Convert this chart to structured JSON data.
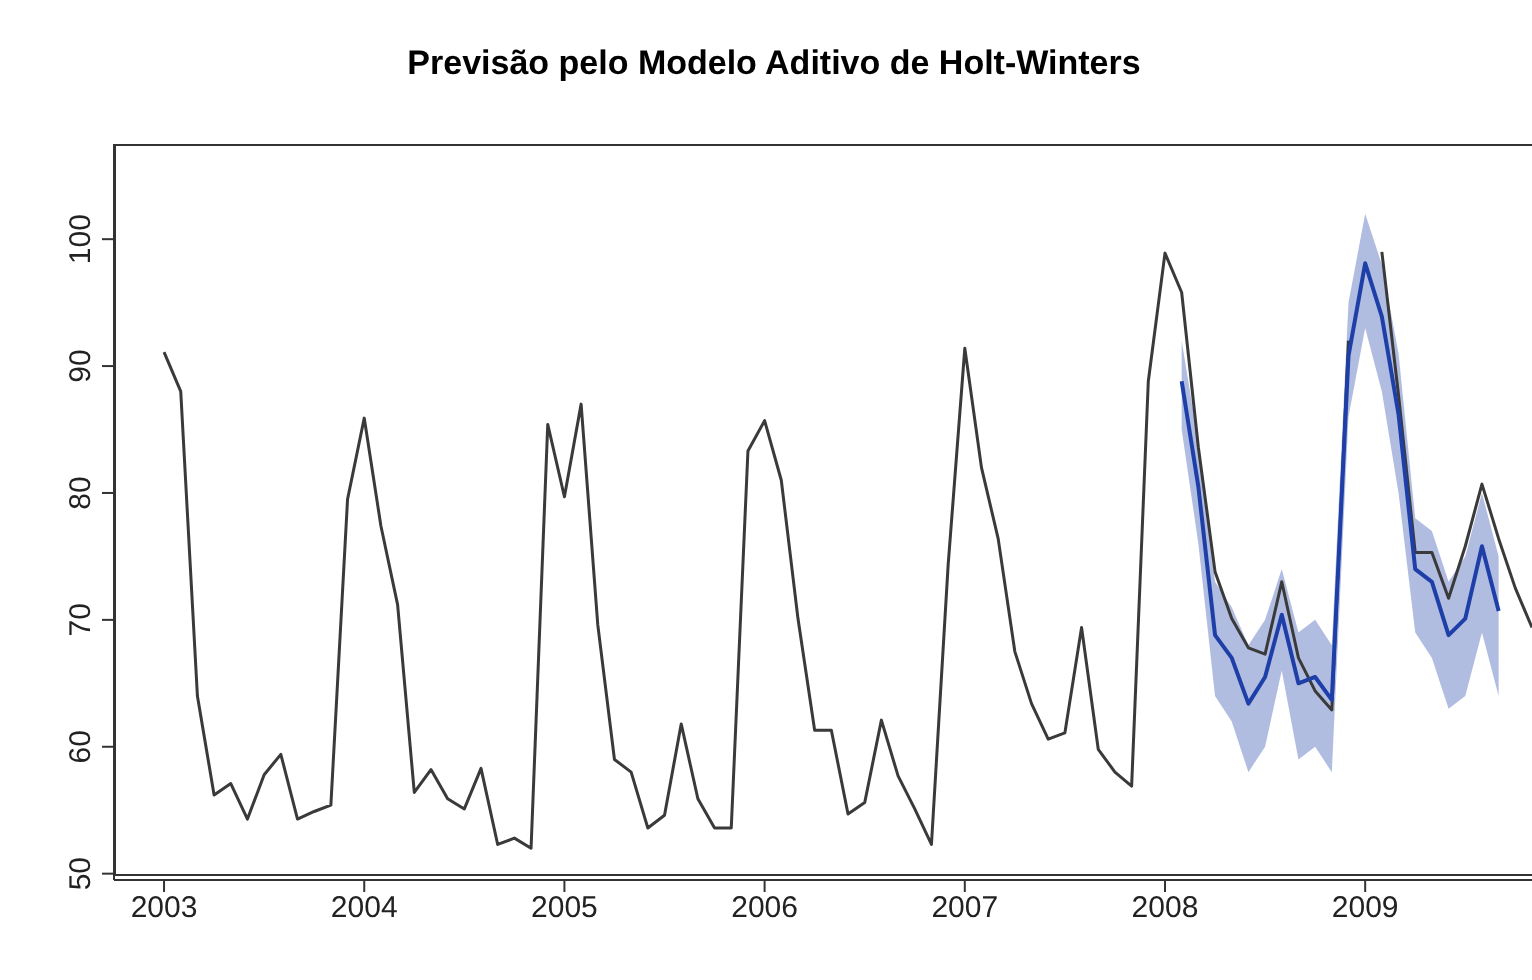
{
  "chart_data": {
    "type": "line",
    "title": "Previsão pelo Modelo Aditivo de Holt-Winters",
    "x": [
      "2003-01",
      "2003-02",
      "2003-03",
      "2003-04",
      "2003-05",
      "2003-06",
      "2003-07",
      "2003-08",
      "2003-09",
      "2003-10",
      "2003-11",
      "2003-12",
      "2004-01",
      "2004-02",
      "2004-03",
      "2004-04",
      "2004-05",
      "2004-06",
      "2004-07",
      "2004-08",
      "2004-09",
      "2004-10",
      "2004-11",
      "2004-12",
      "2005-01",
      "2005-02",
      "2005-03",
      "2005-04",
      "2005-05",
      "2005-06",
      "2005-07",
      "2005-08",
      "2005-09",
      "2005-10",
      "2005-11",
      "2005-12",
      "2006-01",
      "2006-02",
      "2006-03",
      "2006-04",
      "2006-05",
      "2006-06",
      "2006-07",
      "2006-08",
      "2006-09",
      "2006-10",
      "2006-11",
      "2006-12",
      "2007-01",
      "2007-02",
      "2007-03",
      "2007-04",
      "2007-05",
      "2007-06",
      "2007-07",
      "2007-08",
      "2007-09",
      "2007-10",
      "2007-11",
      "2007-12",
      "2008-01",
      "2008-02",
      "2008-03",
      "2008-04",
      "2008-05",
      "2008-06",
      "2008-07",
      "2008-08",
      "2008-09",
      "2008-10",
      "2008-11",
      "2008-12",
      "2009-01",
      "2009-02",
      "2009-03",
      "2009-04",
      "2009-05",
      "2009-06",
      "2009-07",
      "2009-08",
      "2009-09",
      "2009-10",
      "2009-11"
    ],
    "series": [
      {
        "color": "#3a3a3a",
        "values": [
          91.1,
          88.0,
          64.0,
          56.2,
          57.1,
          54.3,
          57.8,
          59.4,
          54.3,
          54.9,
          55.4,
          79.5,
          85.9,
          77.4,
          71.2,
          56.4,
          58.2,
          55.9,
          55.1,
          58.3,
          52.3,
          52.8,
          52.0,
          85.4,
          79.7,
          87.0,
          69.6,
          59.0,
          58.0,
          53.6,
          54.6,
          61.8,
          55.9,
          53.6,
          53.6,
          83.3,
          85.7,
          81.0,
          70.1,
          61.3,
          61.3,
          54.7,
          55.6,
          62.1,
          57.7,
          55.1,
          52.3,
          74.3,
          91.4,
          82.0,
          76.4,
          67.5,
          63.4,
          60.6,
          61.1,
          69.4,
          59.8,
          58.0,
          56.9,
          88.8,
          98.9,
          95.8,
          83.6,
          73.8,
          70.1,
          67.8,
          67.3,
          73.0,
          67.0,
          64.4,
          62.9,
          92,
          null,
          99,
          87.7,
          75.3,
          75.3,
          71.7,
          75.8,
          80.7,
          76.4,
          72.5,
          69.4
        ]
      },
      {
        "color": "#1f3fa8",
        "x": [
          "2008-02",
          "2008-03",
          "2008-04",
          "2008-05",
          "2008-06",
          "2008-07",
          "2008-08",
          "2008-09",
          "2008-10",
          "2008-11",
          "2008-12",
          "2009-01",
          "2009-02",
          "2009-03",
          "2009-04",
          "2009-05",
          "2009-06",
          "2009-07",
          "2009-08",
          "2009-09"
        ],
        "values": [
          88.8,
          80.5,
          68.8,
          67.0,
          63.4,
          65.5,
          70.4,
          65.0,
          65.5,
          63.7,
          90.8,
          98.1,
          93.9,
          86.2,
          74.0,
          73.0,
          68.8,
          70.1,
          75.8,
          70.7
        ],
        "upper": [
          92,
          84,
          73,
          71,
          68,
          70,
          74,
          69,
          70,
          68,
          95,
          102,
          98,
          91,
          78,
          77,
          73,
          75,
          80,
          75
        ],
        "lower": [
          85,
          76,
          64,
          62,
          58,
          60,
          66,
          59,
          60,
          58,
          86,
          93,
          88,
          80,
          69,
          67,
          63,
          64,
          69,
          64
        ]
      }
    ],
    "xlim": [
      "2002-10",
      "2009-11"
    ],
    "xticks": [
      {
        "value": "2003-01",
        "label": "2003"
      },
      {
        "value": "2004-01",
        "label": "2004"
      },
      {
        "value": "2005-01",
        "label": "2005"
      },
      {
        "value": "2006-01",
        "label": "2006"
      },
      {
        "value": "2007-01",
        "label": "2007"
      },
      {
        "value": "2008-01",
        "label": "2008"
      },
      {
        "value": "2009-01",
        "label": "2009"
      }
    ],
    "ylim": [
      49.5,
      107.5
    ],
    "yticks": [
      50,
      60,
      70,
      80,
      90,
      100
    ]
  }
}
